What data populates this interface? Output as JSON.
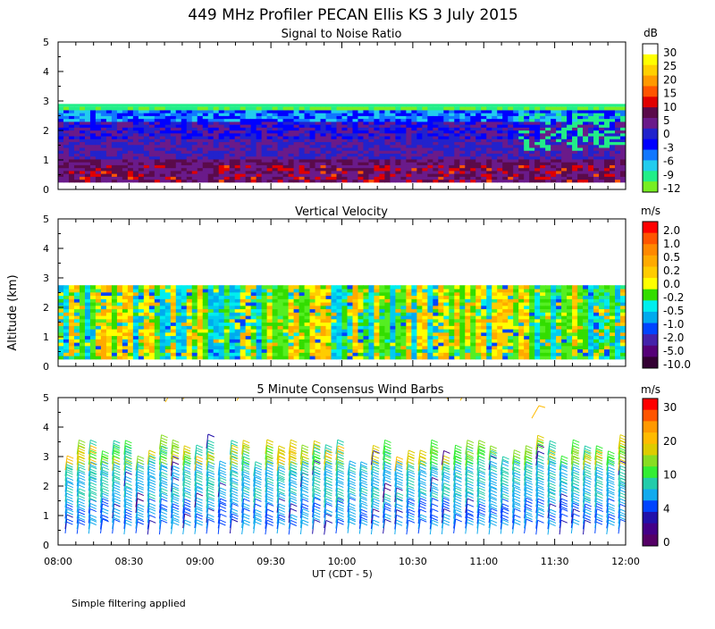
{
  "title": "449 MHz Profiler PECAN Ellis KS  3 July 2015",
  "y_axis_label": "Altitude (km)",
  "x_axis_label": "UT  (CDT - 5)",
  "x_ticks": [
    "08:00",
    "08:30",
    "09:00",
    "09:30",
    "10:00",
    "10:30",
    "11:00",
    "11:30",
    "12:00"
  ],
  "footnote": "Simple filtering applied",
  "chart_data": [
    {
      "type": "heatmap",
      "title": "Signal to Noise Ratio",
      "x_range": [
        "08:00",
        "12:00"
      ],
      "ylim": [
        0,
        5
      ],
      "y_ticks": [
        "0",
        "1",
        "2",
        "3",
        "4",
        "5"
      ],
      "colorbar_unit": "dB",
      "colorbar_labels": [
        "30",
        "25",
        "20",
        "15",
        "10",
        "5",
        "0",
        "-3",
        "-6",
        "-9",
        "-12"
      ],
      "colorbar_colors": [
        "#ffffff",
        "#ffff00",
        "#ffd000",
        "#ff9900",
        "#ff5500",
        "#e00000",
        "#5a0a4a",
        "#6a1a8a",
        "#2222cc",
        "#0000ff",
        "#1177ff",
        "#22ccee",
        "#22ee88",
        "#77ee22"
      ],
      "data_extent_km": [
        0.25,
        2.8
      ],
      "palette": [
        "#e00000",
        "#ff5500",
        "#5a0a4a",
        "#6a1a8a",
        "#2222cc",
        "#0000ff",
        "#1177ff",
        "#22ccee",
        "#22ee88",
        "#77ee22"
      ]
    },
    {
      "type": "heatmap",
      "title": "Vertical Velocity",
      "x_range": [
        "08:00",
        "12:00"
      ],
      "ylim": [
        0,
        5
      ],
      "y_ticks": [
        "0",
        "1",
        "2",
        "3",
        "4",
        "5"
      ],
      "colorbar_unit": "m/s",
      "colorbar_labels": [
        "2.0",
        "1.0",
        "0.5",
        "0.2",
        "0.0",
        "-0.2",
        "-0.5",
        "-1.0",
        "-2.0",
        "-5.0",
        "-10.0"
      ],
      "colorbar_colors": [
        "#ff0000",
        "#ff5500",
        "#ff8800",
        "#ffaa00",
        "#ffcc00",
        "#ffff00",
        "#33dd00",
        "#00eeee",
        "#00aaee",
        "#0044ff",
        "#4422aa",
        "#550077",
        "#330033"
      ],
      "data_extent_km": [
        0.25,
        2.75
      ],
      "palette": [
        "#ffcc00",
        "#ffaa00",
        "#ffff00",
        "#33dd00",
        "#55ee22",
        "#00eeee",
        "#00ccee",
        "#00aaee",
        "#22ee88",
        "#0044ff"
      ]
    },
    {
      "type": "scatter",
      "title": "5 Minute Consensus Wind Barbs",
      "x_range": [
        "08:00",
        "12:00"
      ],
      "ylim": [
        0,
        5
      ],
      "y_ticks": [
        "0",
        "1",
        "2",
        "3",
        "4",
        "5"
      ],
      "colorbar_unit": "m/s",
      "colorbar_labels": [
        "30",
        "20",
        "10",
        "4",
        "0"
      ],
      "colorbar_colors": [
        "#ff0000",
        "#ff5500",
        "#ff9900",
        "#ffbb00",
        "#ddcc00",
        "#88dd22",
        "#33ee33",
        "#22ccaa",
        "#11aaee",
        "#0044ff",
        "#2211aa",
        "#440088",
        "#550066"
      ],
      "wind_speed_range_ms": [
        0,
        30
      ]
    }
  ]
}
